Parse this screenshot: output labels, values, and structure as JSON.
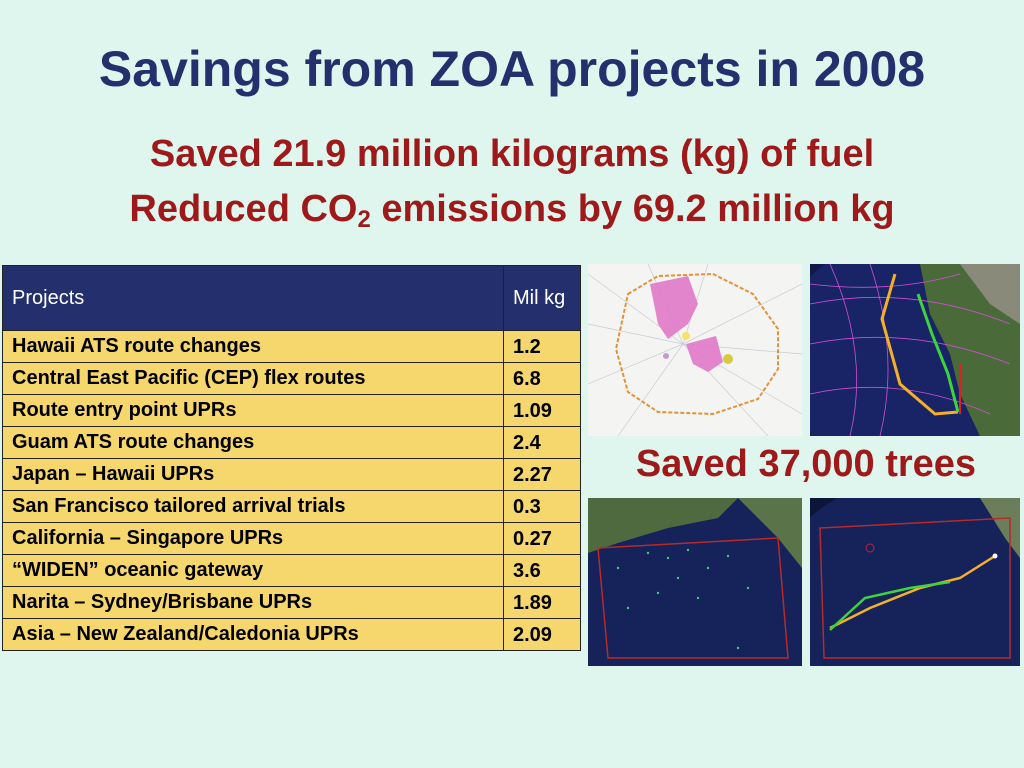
{
  "slide": {
    "title": "Savings from ZOA projects in 2008",
    "line1": "Saved 21.9 million kilograms (kg) of fuel",
    "line2_pre": "Reduced CO",
    "line2_sub": "2",
    "line2_post": " emissions by 69.2 million kg",
    "trees": "Saved 37,000 trees"
  },
  "table": {
    "headers": [
      "Projects",
      "Mil kg"
    ],
    "rows": [
      [
        "Hawaii ATS route changes",
        "1.2"
      ],
      [
        "Central East Pacific (CEP) flex routes",
        "6.8"
      ],
      [
        "Route entry point UPRs",
        "1.09"
      ],
      [
        "Guam ATS route changes",
        "2.4"
      ],
      [
        "Japan – Hawaii UPRs",
        "2.27"
      ],
      [
        "San Francisco tailored arrival trials",
        "0.3"
      ],
      [
        "California – Singapore UPRs",
        "0.27"
      ],
      [
        "“WIDEN” oceanic gateway",
        "3.6"
      ],
      [
        "Narita – Sydney/Brisbane UPRs",
        "1.89"
      ],
      [
        "Asia – New Zealand/Caledonia UPRs",
        "2.09"
      ]
    ]
  },
  "images": [
    {
      "icon": "airspace-chart-image"
    },
    {
      "icon": "pacific-globe-routes-image"
    },
    {
      "icon": "pacific-globe-image"
    },
    {
      "icon": "pacific-globe-routes-image"
    }
  ],
  "colors": {
    "background": "#dff6ee",
    "title": "#24306e",
    "accent": "#9e1a1a",
    "table_header": "#24306e",
    "table_cell": "#f5d76e"
  }
}
